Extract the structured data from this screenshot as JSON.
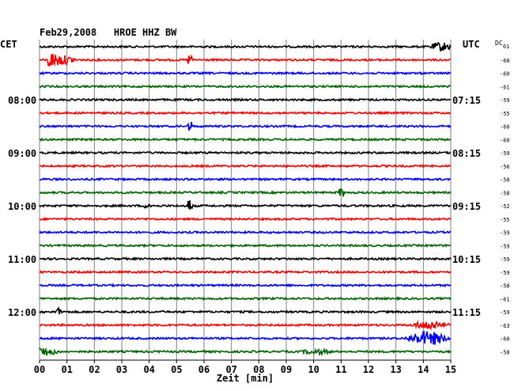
{
  "chart_data": {
    "type": "line",
    "title": "Feb29,2008   HROE HHZ BW",
    "left_header": "CET",
    "right_header": "UTC",
    "dc_header": "DC",
    "dc_header_sub": "61",
    "xlabel": "Zeit [min]",
    "xlim": [
      0,
      15
    ],
    "x_ticks": [
      "00",
      "01",
      "02",
      "03",
      "04",
      "05",
      "06",
      "07",
      "08",
      "09",
      "10",
      "11",
      "12",
      "13",
      "14",
      "15"
    ],
    "trace_count": 24,
    "trace_color_cycle": [
      "#000000",
      "#ff0000",
      "#0000ff",
      "#006400"
    ],
    "left_time_labels": [
      {
        "row": 4,
        "label": "08:00"
      },
      {
        "row": 8,
        "label": "09:00"
      },
      {
        "row": 12,
        "label": "10:00"
      },
      {
        "row": 16,
        "label": "11:00"
      },
      {
        "row": 20,
        "label": "12:00"
      }
    ],
    "right_time_labels": [
      {
        "row": 4,
        "label": "07:15"
      },
      {
        "row": 8,
        "label": "08:15"
      },
      {
        "row": 12,
        "label": "09:15"
      },
      {
        "row": 16,
        "label": "10:15"
      },
      {
        "row": 20,
        "label": "11:15"
      }
    ],
    "dc_values": [
      "-60",
      "-60",
      "-61",
      "-59",
      "-55",
      "-60",
      "-60",
      "-59",
      "-56",
      "-58",
      "-58",
      "-52",
      "-55",
      "-59",
      "-59",
      "-59",
      "-59",
      "-58",
      "-61",
      "-59",
      "-63",
      "-60",
      "-58"
    ],
    "events": [
      {
        "trace": 0,
        "at_min": 14.2,
        "width_min": 0.9,
        "amp": 1.4,
        "kind": "burst"
      },
      {
        "trace": 1,
        "at_min": 0.3,
        "width_min": 1.2,
        "amp": 2.8,
        "kind": "decay"
      },
      {
        "trace": 1,
        "at_min": 5.5,
        "width_min": 0.08,
        "amp": 1.2,
        "kind": "spike"
      },
      {
        "trace": 6,
        "at_min": 5.5,
        "width_min": 0.08,
        "amp": 1.1,
        "kind": "spike"
      },
      {
        "trace": 11,
        "at_min": 11.0,
        "width_min": 0.08,
        "amp": 0.9,
        "kind": "spike"
      },
      {
        "trace": 12,
        "at_min": 3.8,
        "width_min": 0.3,
        "amp": 1.0,
        "kind": "burst"
      },
      {
        "trace": 12,
        "at_min": 5.5,
        "width_min": 0.08,
        "amp": 1.6,
        "kind": "spike"
      },
      {
        "trace": 20,
        "at_min": 0.6,
        "width_min": 0.3,
        "amp": 1.6,
        "kind": "decay"
      },
      {
        "trace": 21,
        "at_min": 13.5,
        "width_min": 1.5,
        "amp": 1.3,
        "kind": "burst"
      },
      {
        "trace": 22,
        "at_min": 13.3,
        "width_min": 1.7,
        "amp": 2.2,
        "kind": "burst"
      },
      {
        "trace": 23,
        "at_min": 0.0,
        "width_min": 0.8,
        "amp": 1.8,
        "kind": "decay"
      },
      {
        "trace": 23,
        "at_min": 9.5,
        "width_min": 1.2,
        "amp": 0.7,
        "kind": "burst"
      }
    ]
  }
}
